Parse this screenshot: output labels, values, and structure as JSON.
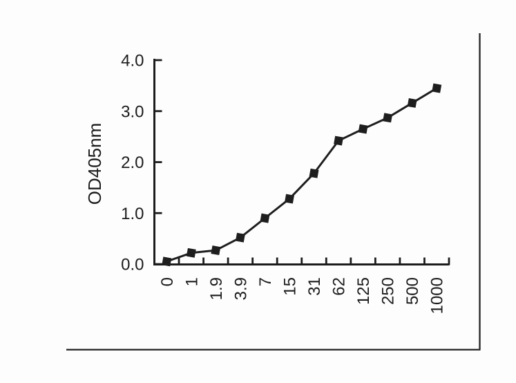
{
  "figure": {
    "bg_color": "#fdfdfd",
    "frame_color": "#2b2b2b",
    "axis_color": "#1c1c1c",
    "series_color": "#1e1e1e",
    "marker_color": "#1e1e1e"
  },
  "chart_data": {
    "type": "line",
    "title": "",
    "xlabel": "",
    "ylabel": "OD405nm",
    "categories": [
      "0",
      "1",
      "1.9",
      "3.9",
      "7",
      "15",
      "31",
      "62",
      "125",
      "250",
      "500",
      "1000"
    ],
    "values": [
      0.05,
      0.22,
      0.27,
      0.52,
      0.9,
      1.28,
      1.78,
      2.42,
      2.65,
      2.87,
      3.16,
      3.45
    ],
    "series": [
      {
        "name": "OD405nm",
        "values": [
          0.05,
          0.22,
          0.27,
          0.52,
          0.9,
          1.28,
          1.78,
          2.42,
          2.65,
          2.87,
          3.16,
          3.45
        ]
      }
    ],
    "y_tick_values": [
      0,
      1,
      2,
      3,
      4
    ],
    "y_tick_labels": [
      "0.0",
      "1.0",
      "2.0",
      "3.0",
      "4.0"
    ],
    "ylim": [
      0,
      4
    ],
    "x_axis_type": "category",
    "x_label_rotation_deg": -90,
    "marker": "filled-square",
    "grid": false,
    "legend": "none"
  }
}
